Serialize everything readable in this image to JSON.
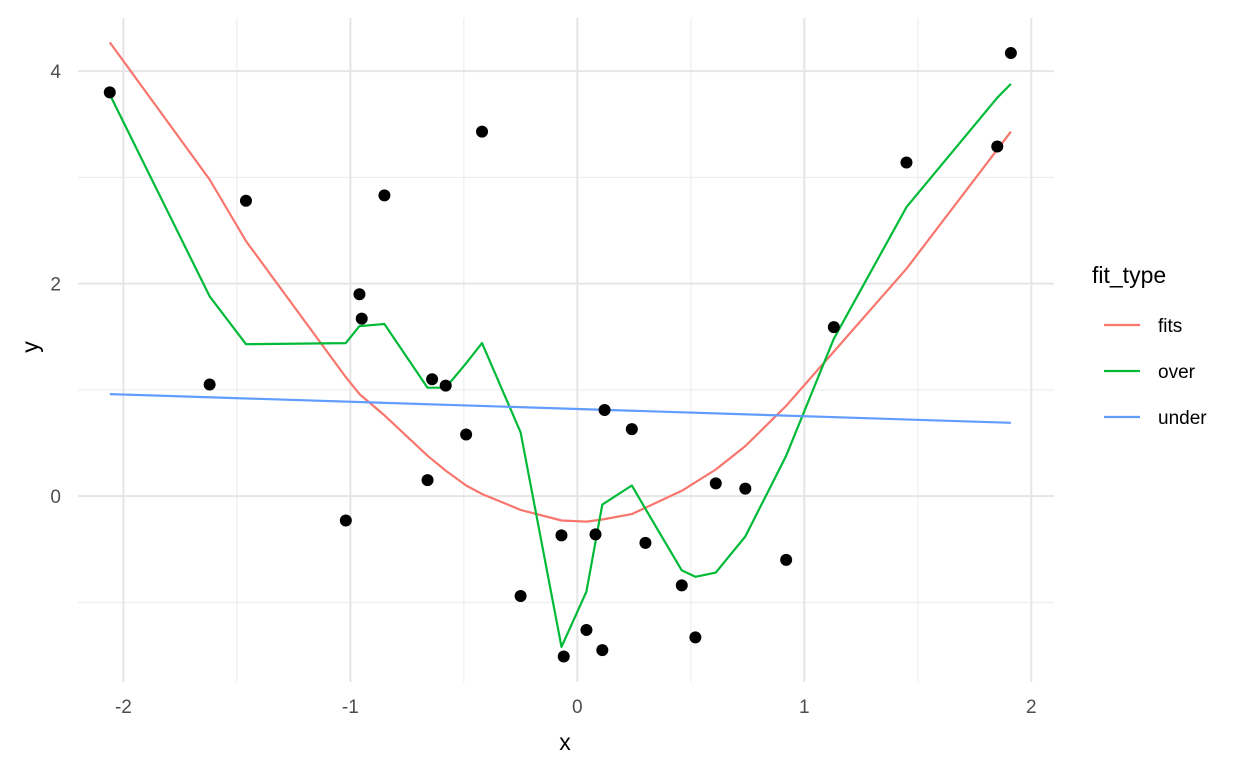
{
  "chart_data": {
    "type": "scatter",
    "title": "",
    "xlabel": "x",
    "ylabel": "y",
    "xlim": [
      -2.2,
      2.1
    ],
    "ylim": [
      -1.75,
      4.5
    ],
    "x_ticks": [
      -2,
      -1,
      0,
      1,
      2
    ],
    "x_tick_labels": [
      "-2",
      "-1",
      "0",
      "1",
      "2"
    ],
    "y_ticks": [
      0,
      2,
      4
    ],
    "y_tick_labels": [
      "0",
      "2",
      "4"
    ],
    "x_minor_ticks": [
      -1.5,
      -0.5,
      0.5,
      1.5
    ],
    "y_minor_ticks": [
      -1,
      1,
      3
    ],
    "grid": true,
    "legend": {
      "title": "fit_type",
      "placement": "right",
      "entries": [
        "fits",
        "over",
        "under"
      ]
    },
    "points": {
      "color": "#000000",
      "x": [
        -2.06,
        -1.62,
        -1.46,
        -1.02,
        -0.96,
        -0.95,
        -0.85,
        -0.66,
        -0.64,
        -0.58,
        -0.49,
        -0.42,
        -0.25,
        -0.07,
        -0.06,
        0.04,
        0.08,
        0.11,
        0.12,
        0.24,
        0.3,
        0.46,
        0.52,
        0.61,
        0.74,
        0.92,
        1.13,
        1.45,
        1.85,
        1.91
      ],
      "y": [
        3.8,
        1.05,
        2.78,
        -0.23,
        1.9,
        1.67,
        2.83,
        0.15,
        1.1,
        1.04,
        0.58,
        3.43,
        -0.94,
        -0.37,
        -1.51,
        -1.26,
        -0.36,
        -1.45,
        0.81,
        0.63,
        -0.44,
        -0.84,
        -1.33,
        0.12,
        0.07,
        -0.6,
        1.59,
        3.14,
        3.29,
        4.17
      ]
    },
    "series": [
      {
        "name": "fits",
        "color": "#f8766d",
        "x": [
          -2.06,
          -1.62,
          -1.46,
          -1.02,
          -0.96,
          -0.85,
          -0.66,
          -0.58,
          -0.49,
          -0.42,
          -0.25,
          -0.07,
          0.04,
          0.11,
          0.24,
          0.46,
          0.61,
          0.74,
          0.92,
          1.13,
          1.45,
          1.91
        ],
        "y": [
          4.27,
          2.98,
          2.4,
          1.12,
          0.96,
          0.76,
          0.38,
          0.24,
          0.1,
          0.02,
          -0.13,
          -0.23,
          -0.24,
          -0.22,
          -0.17,
          0.05,
          0.25,
          0.47,
          0.85,
          1.36,
          2.14,
          3.43
        ]
      },
      {
        "name": "over",
        "color": "#00ba38",
        "x": [
          -2.06,
          -1.62,
          -1.46,
          -1.02,
          -0.96,
          -0.85,
          -0.66,
          -0.58,
          -0.49,
          -0.42,
          -0.25,
          -0.07,
          0.04,
          0.11,
          0.24,
          0.3,
          0.46,
          0.52,
          0.61,
          0.74,
          0.92,
          1.13,
          1.45,
          1.85,
          1.91
        ],
        "y": [
          3.78,
          1.88,
          1.43,
          1.44,
          1.6,
          1.62,
          1.02,
          1.02,
          1.25,
          1.44,
          0.6,
          -1.42,
          -0.9,
          -0.08,
          0.1,
          -0.12,
          -0.7,
          -0.76,
          -0.72,
          -0.38,
          0.38,
          1.48,
          2.72,
          3.75,
          3.88
        ]
      },
      {
        "name": "under",
        "color": "#619cff",
        "x": [
          -2.06,
          1.91
        ],
        "y": [
          0.96,
          0.69
        ]
      }
    ]
  }
}
